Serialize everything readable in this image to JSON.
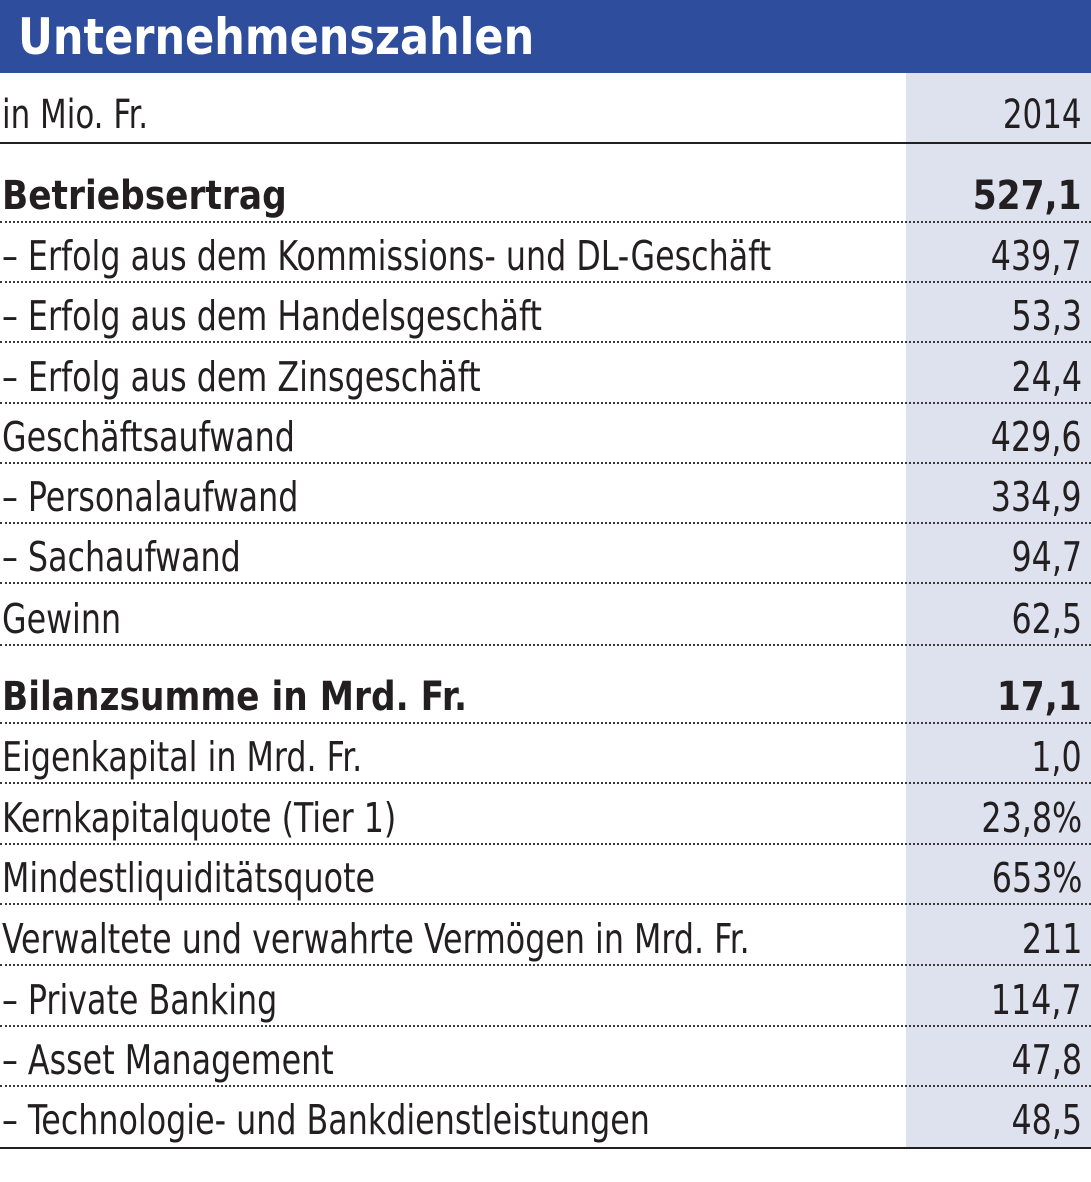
{
  "title": "Unternehmenszahlen",
  "header": {
    "label": "in Mio. Fr.",
    "year": "2014"
  },
  "rows": [
    {
      "label": "Betriebsertrag",
      "value": "527,1",
      "bold": true
    },
    {
      "label": "– Erfolg aus dem Kommissions- und DL-Geschäft",
      "value": "439,7",
      "bold": false
    },
    {
      "label": "– Erfolg aus dem Handelsgeschäft",
      "value": "53,3",
      "bold": false
    },
    {
      "label": "– Erfolg aus dem Zinsgeschäft",
      "value": "24,4",
      "bold": false
    },
    {
      "label": "Geschäftsaufwand",
      "value": "429,6",
      "bold": false
    },
    {
      "label": "– Personalaufwand",
      "value": "334,9",
      "bold": false
    },
    {
      "label": "– Sachaufwand",
      "value": "94,7",
      "bold": false
    },
    {
      "label": "Gewinn",
      "value": "62,5",
      "bold": false
    },
    {
      "label": "Bilanzsumme in Mrd. Fr.",
      "value": "17,1",
      "bold": true
    },
    {
      "label": "Eigenkapital in Mrd. Fr.",
      "value": "1,0",
      "bold": false
    },
    {
      "label": "Kernkapitalquote (Tier 1)",
      "value": "23,8%",
      "bold": false
    },
    {
      "label": "Mindestliquiditätsquote",
      "value": "653%",
      "bold": false
    },
    {
      "label": "Verwaltete und verwahrte Vermögen in Mrd. Fr.",
      "value": "211",
      "bold": false
    },
    {
      "label": "– Private Banking",
      "value": "114,7",
      "bold": false
    },
    {
      "label": "– Asset Management",
      "value": "47,8",
      "bold": false
    },
    {
      "label": "– Technologie- und Bankdienstleistungen",
      "value": "48,5",
      "bold": false
    }
  ],
  "colors": {
    "title_bar": "#2e4d9c",
    "title_text": "#ffffff",
    "value_column": "#dee2ee",
    "text": "#231f20"
  }
}
